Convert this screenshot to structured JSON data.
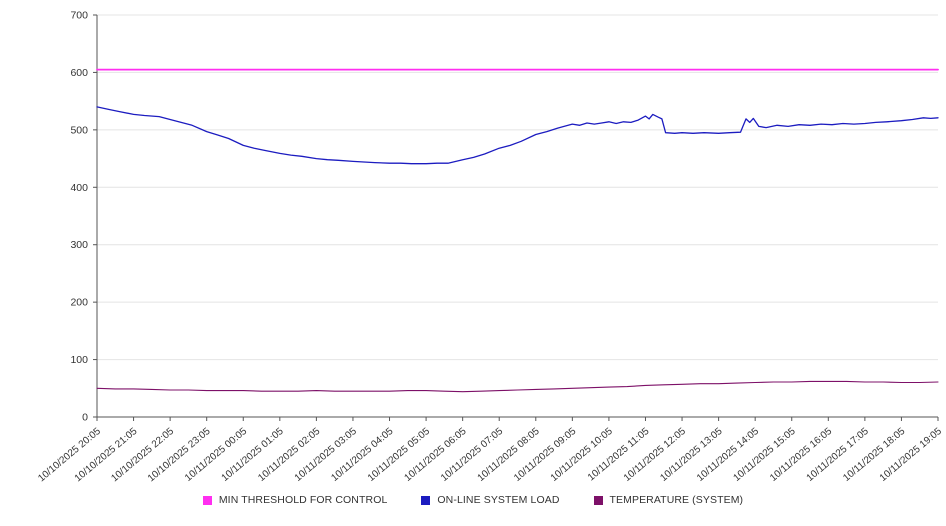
{
  "chart_data": {
    "type": "line",
    "title": "",
    "xlabel": "",
    "ylabel": "",
    "grid": true,
    "legend_position": "bottom",
    "y_axis": {
      "min": 0,
      "max": 700,
      "step": 100,
      "ticks": [
        "0",
        "100",
        "200",
        "300",
        "400",
        "500",
        "600",
        "700"
      ]
    },
    "hours_span": 23,
    "x_labels": [
      "10/10/2025 20:05",
      "10/10/2025 21:05",
      "10/10/2025 22:05",
      "10/10/2025 23:05",
      "10/11/2025 00:05",
      "10/11/2025 01:05",
      "10/11/2025 02:05",
      "10/11/2025 03:05",
      "10/11/2025 04:05",
      "10/11/2025 05:05",
      "10/11/2025 06:05",
      "10/11/2025 07:05",
      "10/11/2025 08:05",
      "10/11/2025 09:05",
      "10/11/2025 10:05",
      "10/11/2025 11:05",
      "10/11/2025 12:05",
      "10/11/2025 13:05",
      "10/11/2025 14:05",
      "10/11/2025 15:05",
      "10/11/2025 16:05",
      "10/11/2025 17:05",
      "10/11/2025 18:05",
      "10/11/2025 19:05"
    ],
    "series": [
      {
        "name": "MIN THRESHOLD FOR CONTROL",
        "color": "#ff2ef0",
        "width": 1.8,
        "points": [
          [
            0,
            605
          ],
          [
            23,
            605
          ]
        ]
      },
      {
        "name": "ON-LINE SYSTEM LOAD",
        "color": "#1c1cc0",
        "width": 1.3,
        "points": [
          [
            0,
            540
          ],
          [
            0.3,
            536
          ],
          [
            0.6,
            532
          ],
          [
            1,
            527
          ],
          [
            1.3,
            525
          ],
          [
            1.7,
            523
          ],
          [
            2,
            518
          ],
          [
            2.3,
            513
          ],
          [
            2.6,
            508
          ],
          [
            3,
            497
          ],
          [
            3.3,
            491
          ],
          [
            3.6,
            485
          ],
          [
            4,
            473
          ],
          [
            4.3,
            468
          ],
          [
            4.6,
            464
          ],
          [
            5,
            459
          ],
          [
            5.3,
            456
          ],
          [
            5.6,
            454
          ],
          [
            6,
            450
          ],
          [
            6.3,
            448
          ],
          [
            6.6,
            447
          ],
          [
            7,
            445
          ],
          [
            7.3,
            444
          ],
          [
            7.6,
            443
          ],
          [
            8,
            442
          ],
          [
            8.3,
            442
          ],
          [
            8.6,
            441
          ],
          [
            9,
            441
          ],
          [
            9.3,
            442
          ],
          [
            9.6,
            442
          ],
          [
            10,
            448
          ],
          [
            10.3,
            452
          ],
          [
            10.6,
            458
          ],
          [
            11,
            468
          ],
          [
            11.3,
            473
          ],
          [
            11.6,
            480
          ],
          [
            12,
            492
          ],
          [
            12.3,
            497
          ],
          [
            12.6,
            503
          ],
          [
            13,
            510
          ],
          [
            13.2,
            508
          ],
          [
            13.4,
            512
          ],
          [
            13.6,
            510
          ],
          [
            13.8,
            512
          ],
          [
            14,
            514
          ],
          [
            14.2,
            511
          ],
          [
            14.4,
            514
          ],
          [
            14.6,
            513
          ],
          [
            14.8,
            517
          ],
          [
            15,
            524
          ],
          [
            15.1,
            519
          ],
          [
            15.2,
            527
          ],
          [
            15.35,
            522
          ],
          [
            15.45,
            519
          ],
          [
            15.55,
            495
          ],
          [
            15.8,
            494
          ],
          [
            16,
            495
          ],
          [
            16.3,
            494
          ],
          [
            16.6,
            495
          ],
          [
            17,
            494
          ],
          [
            17.3,
            495
          ],
          [
            17.6,
            496
          ],
          [
            17.75,
            519
          ],
          [
            17.85,
            513
          ],
          [
            17.95,
            520
          ],
          [
            18.1,
            506
          ],
          [
            18.3,
            504
          ],
          [
            18.6,
            508
          ],
          [
            18.9,
            506
          ],
          [
            19.2,
            509
          ],
          [
            19.5,
            508
          ],
          [
            19.8,
            510
          ],
          [
            20.1,
            509
          ],
          [
            20.4,
            511
          ],
          [
            20.7,
            510
          ],
          [
            21,
            511
          ],
          [
            21.3,
            513
          ],
          [
            21.6,
            514
          ],
          [
            22,
            516
          ],
          [
            22.3,
            518
          ],
          [
            22.6,
            521
          ],
          [
            22.8,
            520
          ],
          [
            23,
            521
          ]
        ]
      },
      {
        "name": "TEMPERATURE (SYSTEM)",
        "color": "#7d1068",
        "width": 1.1,
        "points": [
          [
            0,
            50
          ],
          [
            0.5,
            49
          ],
          [
            1,
            49
          ],
          [
            1.5,
            48
          ],
          [
            2,
            47
          ],
          [
            2.5,
            47
          ],
          [
            3,
            46
          ],
          [
            3.5,
            46
          ],
          [
            4,
            46
          ],
          [
            4.5,
            45
          ],
          [
            5,
            45
          ],
          [
            5.5,
            45
          ],
          [
            6,
            46
          ],
          [
            6.5,
            45
          ],
          [
            7,
            45
          ],
          [
            7.5,
            45
          ],
          [
            8,
            45
          ],
          [
            8.5,
            46
          ],
          [
            9,
            46
          ],
          [
            9.5,
            45
          ],
          [
            10,
            44
          ],
          [
            10.5,
            45
          ],
          [
            11,
            46
          ],
          [
            11.5,
            47
          ],
          [
            12,
            48
          ],
          [
            12.5,
            49
          ],
          [
            13,
            50
          ],
          [
            13.5,
            51
          ],
          [
            14,
            52
          ],
          [
            14.5,
            53
          ],
          [
            15,
            55
          ],
          [
            15.5,
            56
          ],
          [
            16,
            57
          ],
          [
            16.5,
            58
          ],
          [
            17,
            58
          ],
          [
            17.5,
            59
          ],
          [
            18,
            60
          ],
          [
            18.5,
            61
          ],
          [
            19,
            61
          ],
          [
            19.5,
            62
          ],
          [
            20,
            62
          ],
          [
            20.5,
            62
          ],
          [
            21,
            61
          ],
          [
            21.5,
            61
          ],
          [
            22,
            60
          ],
          [
            22.5,
            60
          ],
          [
            23,
            61
          ]
        ]
      }
    ]
  }
}
